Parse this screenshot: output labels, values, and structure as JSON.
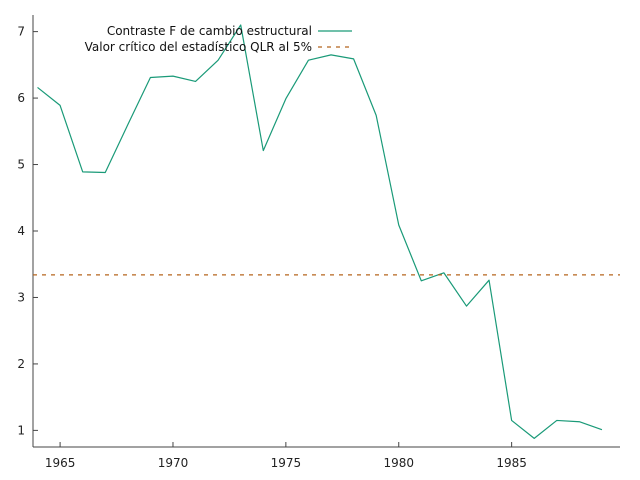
{
  "chart_data": {
    "type": "line",
    "title": "",
    "xlabel": "",
    "ylabel": "",
    "xlim": [
      1963.8,
      1989.8
    ],
    "ylim": [
      0.75,
      7.25
    ],
    "x_ticks": [
      1965,
      1970,
      1975,
      1980,
      1985
    ],
    "y_ticks": [
      1,
      2,
      3,
      4,
      5,
      6,
      7
    ],
    "grid": false,
    "legend_position": "top-center",
    "series": [
      {
        "name": "Contraste F de cambio estructural",
        "color": "#1a9a78",
        "style": "solid",
        "x": [
          1964,
          1965,
          1966,
          1967,
          1968,
          1969,
          1970,
          1971,
          1972,
          1973,
          1974,
          1975,
          1976,
          1977,
          1978,
          1979,
          1980,
          1981,
          1982,
          1983,
          1984,
          1985,
          1986,
          1987,
          1988,
          1989
        ],
        "values": [
          6.16,
          5.89,
          4.89,
          4.88,
          5.6,
          6.31,
          6.33,
          6.25,
          6.57,
          7.1,
          5.21,
          5.99,
          6.57,
          6.65,
          6.59,
          5.74,
          4.09,
          3.25,
          3.37,
          2.87,
          3.26,
          1.15,
          0.88,
          1.15,
          1.13,
          1.01
        ]
      },
      {
        "name": "Valor crítico del estadístico QLR al 5%",
        "color": "#b5651d",
        "style": "dashed",
        "x": [
          1963.8,
          1989.8
        ],
        "values": [
          3.34,
          3.34
        ]
      }
    ]
  }
}
